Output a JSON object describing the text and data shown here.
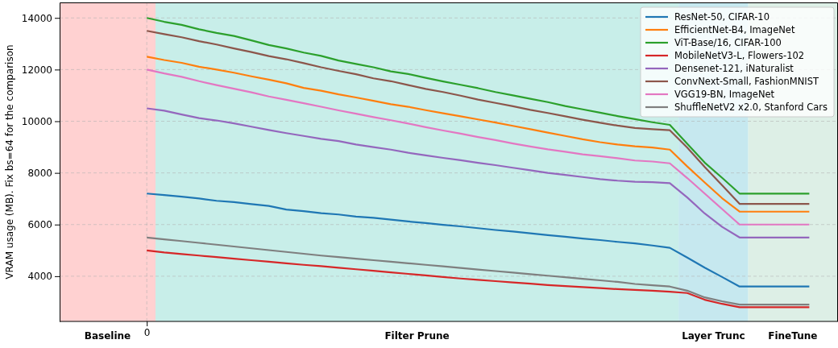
{
  "chart_data": {
    "type": "line",
    "ylabel": "VRAM usage (MB). Fix bs=64 for the comparison",
    "categories": [
      "0",
      null,
      null,
      null,
      null,
      null,
      null,
      null,
      null,
      null,
      null,
      null,
      null,
      null,
      null,
      null,
      null,
      null,
      null,
      null,
      null,
      null,
      null,
      null,
      null,
      null,
      null,
      null,
      null,
      null,
      null,
      null,
      null,
      null,
      null,
      null,
      null,
      null,
      null
    ],
    "ylim": [
      2250,
      14600
    ],
    "yticks": [
      4000,
      6000,
      8000,
      10000,
      12000,
      14000
    ],
    "grid": true,
    "legend": "top right",
    "line_style": "solid",
    "annotations": [
      "Baseline",
      "Filter Prune",
      "Layer Trunc",
      "FineTune"
    ],
    "series": [
      {
        "name": "ResNet-50, CIFAR-10",
        "color": "#1f77b4",
        "values": [
          7200,
          7140,
          7080,
          7010,
          6920,
          6870,
          6790,
          6720,
          6580,
          6520,
          6440,
          6390,
          6310,
          6260,
          6190,
          6120,
          6060,
          5990,
          5930,
          5860,
          5790,
          5730,
          5660,
          5590,
          5530,
          5460,
          5400,
          5330,
          5270,
          5190,
          5100,
          4720,
          4330,
          3970,
          3600,
          3600,
          3600,
          3600,
          3600
        ]
      },
      {
        "name": "EfficientNet-B4, ImageNet",
        "color": "#ff7f0e",
        "values": [
          12500,
          12370,
          12260,
          12110,
          12000,
          11880,
          11740,
          11610,
          11470,
          11290,
          11180,
          11040,
          10920,
          10790,
          10660,
          10560,
          10430,
          10310,
          10190,
          10070,
          9950,
          9820,
          9690,
          9560,
          9430,
          9300,
          9190,
          9100,
          9030,
          8980,
          8900,
          8250,
          7630,
          7020,
          6500,
          6500,
          6500,
          6500,
          6500
        ]
      },
      {
        "name": "ViT-Base/16, CIFAR-100",
        "color": "#2ca02c",
        "values": [
          14000,
          13850,
          13730,
          13560,
          13420,
          13300,
          13130,
          12950,
          12820,
          12660,
          12530,
          12350,
          12220,
          12090,
          11930,
          11830,
          11680,
          11540,
          11410,
          11280,
          11130,
          11000,
          10870,
          10740,
          10590,
          10460,
          10330,
          10200,
          10080,
          9960,
          9860,
          9130,
          8400,
          7810,
          7200,
          7200,
          7200,
          7200,
          7200
        ]
      },
      {
        "name": "MobileNetV3-L, Flowers-102",
        "color": "#d62728",
        "values": [
          5000,
          4920,
          4860,
          4800,
          4740,
          4680,
          4620,
          4560,
          4500,
          4440,
          4390,
          4330,
          4270,
          4210,
          4150,
          4090,
          4030,
          3970,
          3910,
          3860,
          3810,
          3760,
          3710,
          3660,
          3620,
          3580,
          3540,
          3500,
          3470,
          3440,
          3400,
          3350,
          3090,
          2930,
          2800,
          2800,
          2800,
          2800,
          2800
        ]
      },
      {
        "name": "Densenet-121, iNaturalist",
        "color": "#9467bd",
        "values": [
          10500,
          10410,
          10260,
          10120,
          10030,
          9920,
          9790,
          9660,
          9540,
          9430,
          9320,
          9230,
          9100,
          9000,
          8900,
          8780,
          8680,
          8580,
          8490,
          8390,
          8300,
          8200,
          8100,
          8000,
          7920,
          7840,
          7760,
          7700,
          7660,
          7640,
          7600,
          7050,
          6430,
          5910,
          5500,
          5500,
          5500,
          5500,
          5500
        ]
      },
      {
        "name": "ConvNext-Small, FashionMNIST",
        "color": "#8c564b",
        "values": [
          13500,
          13370,
          13250,
          13100,
          12970,
          12820,
          12680,
          12520,
          12400,
          12250,
          12090,
          11950,
          11820,
          11660,
          11550,
          11400,
          11250,
          11130,
          10990,
          10840,
          10710,
          10580,
          10440,
          10320,
          10190,
          10060,
          9940,
          9830,
          9740,
          9690,
          9650,
          8980,
          8230,
          7520,
          6800,
          6800,
          6800,
          6800,
          6800
        ]
      },
      {
        "name": "VGG19-BN, ImageNet",
        "color": "#e377c2",
        "values": [
          12000,
          11850,
          11720,
          11550,
          11400,
          11260,
          11120,
          10960,
          10830,
          10700,
          10560,
          10420,
          10290,
          10160,
          10040,
          9910,
          9770,
          9640,
          9520,
          9390,
          9270,
          9140,
          9020,
          8910,
          8820,
          8720,
          8650,
          8570,
          8480,
          8440,
          8370,
          7800,
          7200,
          6600,
          6000,
          6000,
          6000,
          6000,
          6000
        ]
      },
      {
        "name": "ShuffleNetV2 x2.0, Stanford Cars",
        "color": "#7f7f7f",
        "values": [
          5500,
          5430,
          5360,
          5290,
          5220,
          5150,
          5080,
          5010,
          4940,
          4870,
          4800,
          4740,
          4680,
          4620,
          4560,
          4500,
          4440,
          4380,
          4320,
          4260,
          4200,
          4140,
          4080,
          4020,
          3960,
          3900,
          3840,
          3780,
          3700,
          3650,
          3600,
          3440,
          3180,
          3030,
          2900,
          2900,
          2900,
          2900,
          2900
        ]
      }
    ]
  }
}
